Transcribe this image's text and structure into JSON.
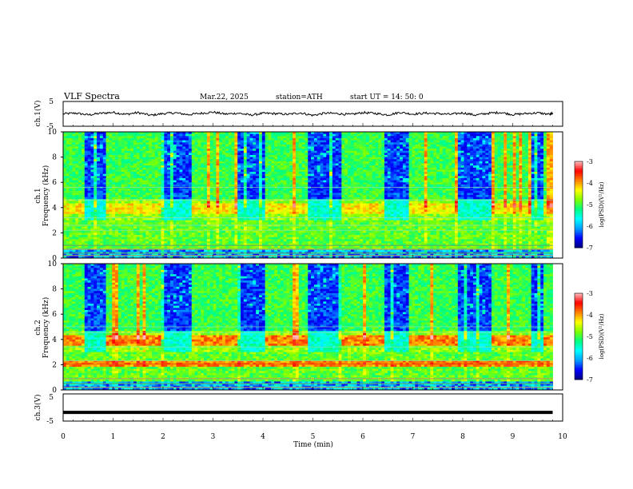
{
  "header": {
    "title": "VLF  Spectra",
    "date": "Mar.22, 2025",
    "station": "station=ATH",
    "start": "start  UT  =   14: 50: 0"
  },
  "chart_data": [
    {
      "type": "line",
      "panel": "ch1-waveform",
      "ylabel": "ch.1(V)",
      "ylim": [
        -5,
        5
      ],
      "y_ticks": [
        "5",
        "-5"
      ],
      "x": [
        0,
        0.25,
        0.5,
        0.75,
        1,
        1.25,
        1.5,
        1.75,
        2,
        2.25,
        2.5,
        2.75,
        3,
        3.25,
        3.5,
        3.75,
        4,
        4.25,
        4.5,
        4.75,
        5,
        5.25,
        5.5,
        5.75,
        6,
        6.25,
        6.5,
        6.75,
        7,
        7.25,
        7.5,
        7.75,
        8,
        8.25,
        8.5,
        8.75,
        9,
        9.25,
        9.5,
        9.75,
        9.8
      ],
      "values": [
        0,
        0.3,
        -0.4,
        0.2,
        0.6,
        -0.2,
        0.5,
        -0.6,
        0.1,
        0.4,
        -0.3,
        0.2,
        0.7,
        -0.1,
        0.3,
        -0.5,
        0.2,
        0.1,
        -0.2,
        0.4,
        -0.6,
        0.3,
        0.1,
        -0.3,
        0.5,
        0.2,
        -0.4,
        0.6,
        -0.1,
        0.3,
        0.1,
        -0.2,
        0.4,
        -0.5,
        0.2,
        0.6,
        -0.3,
        0.1,
        0.4,
        -0.2,
        0.3
      ]
    },
    {
      "type": "heatmap",
      "panel": "ch1-spectrogram",
      "ylabel": "Frequency (kHz)",
      "channel_label": "ch.1",
      "ylim": [
        0,
        10
      ],
      "y_ticks": [
        "0",
        "2",
        "4",
        "6",
        "8",
        "10"
      ],
      "xlim": [
        0,
        9.8
      ],
      "transmitter_on_min": [
        [
          0,
          0.4
        ],
        [
          0.85,
          1.95
        ],
        [
          2.55,
          3.5
        ],
        [
          4.05,
          4.9
        ],
        [
          5.55,
          6.45
        ],
        [
          6.95,
          7.9
        ],
        [
          8.55,
          9.35
        ],
        [
          9.6,
          9.8
        ]
      ],
      "colorbar": {
        "label": "log(PSD)(V²/Hz)",
        "range": [
          -7,
          -3
        ],
        "ticks": [
          "-3",
          "-4",
          "-5",
          "-6",
          "-7"
        ]
      }
    },
    {
      "type": "heatmap",
      "panel": "ch2-spectrogram",
      "ylabel": "Frequency (kHz)",
      "channel_label": "ch.2",
      "ylim": [
        0,
        10
      ],
      "y_ticks": [
        "0",
        "2",
        "4",
        "6",
        "8",
        "10"
      ],
      "xlim": [
        0,
        9.8
      ],
      "transmitter_on_min": [
        [
          0,
          0.4
        ],
        [
          0.85,
          1.95
        ],
        [
          2.55,
          3.5
        ],
        [
          4.05,
          4.9
        ],
        [
          5.55,
          6.45
        ],
        [
          6.95,
          7.9
        ],
        [
          8.55,
          9.35
        ],
        [
          9.6,
          9.8
        ]
      ],
      "colorbar": {
        "label": "log(PSD)(V²/Hz)",
        "range": [
          -7,
          -3
        ],
        "ticks": [
          "-3",
          "-4",
          "-5",
          "-6",
          "-7"
        ]
      }
    },
    {
      "type": "line",
      "panel": "ch3-waveform",
      "ylabel": "ch.3(V)",
      "ylim": [
        -5,
        5
      ],
      "y_ticks": [
        "5",
        "-5"
      ],
      "x": [
        0,
        9.8
      ],
      "values": [
        -1.8,
        -1.8
      ]
    }
  ],
  "xaxis": {
    "label": "Time  (min)",
    "range": [
      0,
      10
    ],
    "ticks": [
      "0",
      "1",
      "2",
      "3",
      "4",
      "5",
      "6",
      "7",
      "8",
      "9",
      "10"
    ]
  },
  "colors": {
    "colormap": [
      "#000080",
      "#0000ff",
      "#00a0ff",
      "#00ffff",
      "#00ff80",
      "#80ff00",
      "#ffff00",
      "#ff8000",
      "#ff0000",
      "#ffc0c0"
    ]
  }
}
